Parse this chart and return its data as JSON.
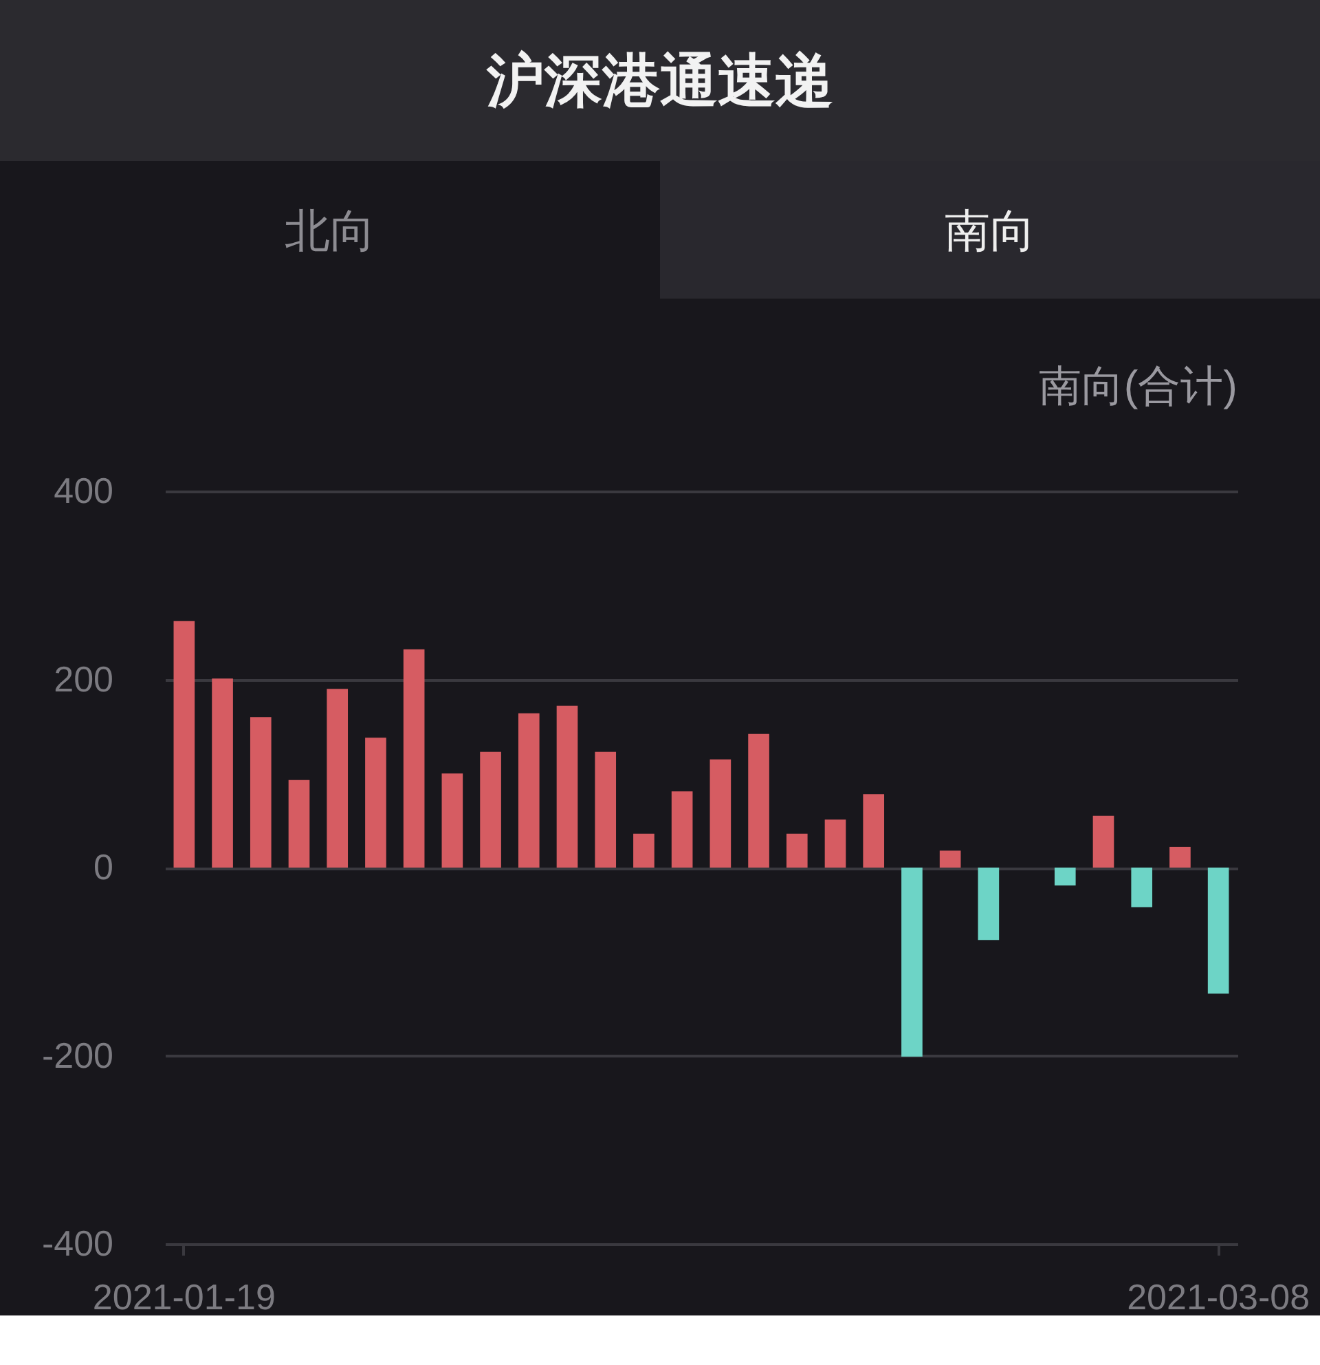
{
  "chart_data": {
    "type": "bar",
    "title": "沪深港通速递",
    "annotations": [
      "北向",
      "南向",
      "南向(合计)"
    ],
    "categories": [
      "2021-01-19",
      null,
      null,
      null,
      null,
      null,
      null,
      null,
      null,
      null,
      null,
      null,
      null,
      null,
      null,
      null,
      null,
      null,
      null,
      null,
      null,
      null,
      null,
      null,
      null,
      null,
      null,
      "2021-03-08"
    ],
    "values": [
      262,
      201,
      160,
      93,
      190,
      138,
      232,
      100,
      123,
      164,
      172,
      123,
      36,
      81,
      115,
      142,
      36,
      51,
      78,
      -201,
      18,
      -77,
      null,
      -19,
      55,
      -42,
      22,
      -134
    ],
    "colors": [
      "#d65c62",
      "#d65c62",
      "#d65c62",
      "#d65c62",
      "#d65c62",
      "#d65c62",
      "#d65c62",
      "#d65c62",
      "#d65c62",
      "#d65c62",
      "#d65c62",
      "#d65c62",
      "#d65c62",
      "#d65c62",
      "#d65c62",
      "#d65c62",
      "#d65c62",
      "#d65c62",
      "#d65c62",
      "#6dd4c6",
      "#d65c62",
      "#6dd4c6",
      null,
      "#6dd4c6",
      "#d65c62",
      "#6dd4c6",
      "#d65c62",
      "#6dd4c6"
    ],
    "ylim": [
      -400,
      400
    ],
    "yticks": [
      -400,
      -200,
      0,
      200,
      400
    ],
    "grid": "y"
  }
}
